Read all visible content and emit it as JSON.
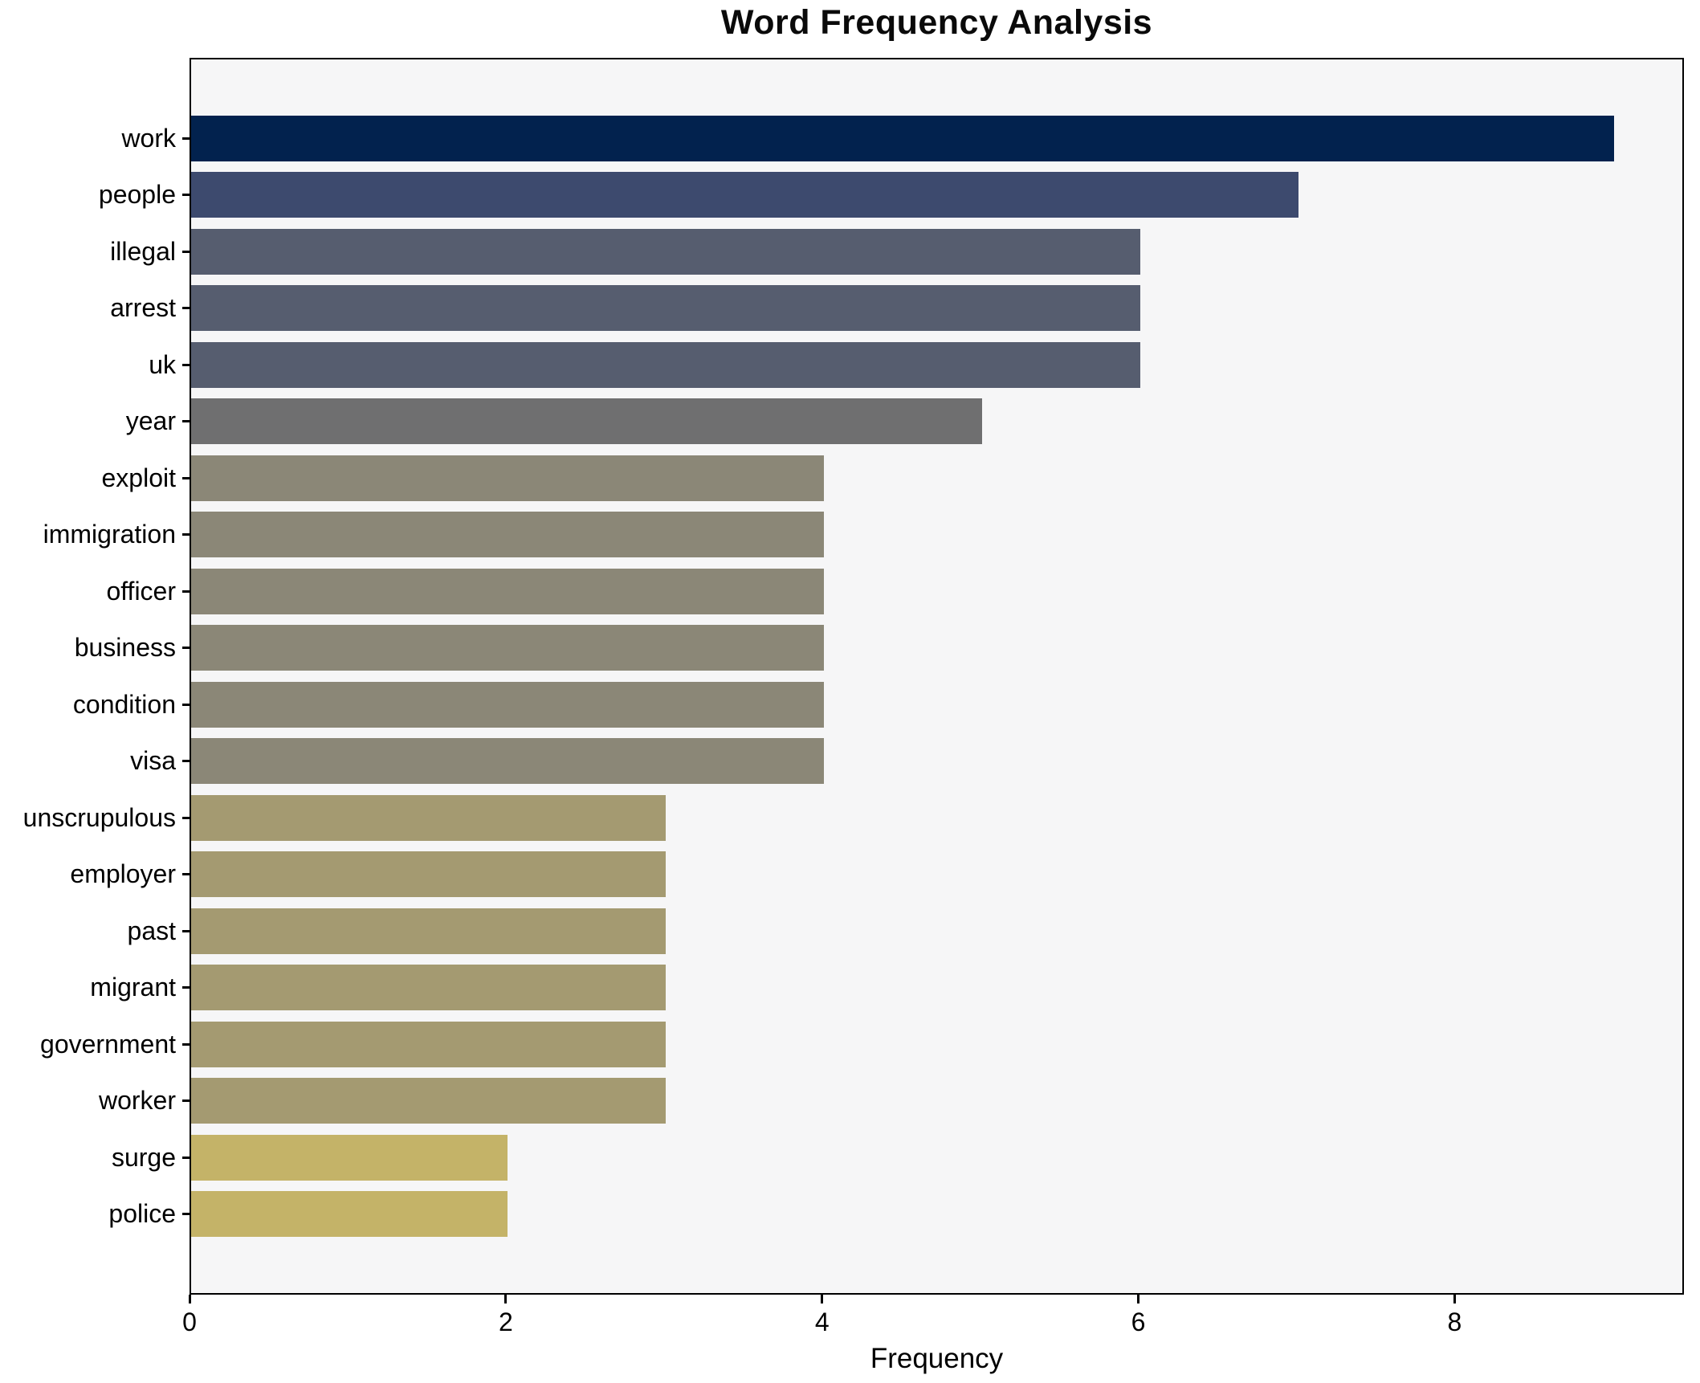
{
  "chart_data": {
    "type": "bar",
    "orientation": "horizontal",
    "title": "Word Frequency Analysis",
    "xlabel": "Frequency",
    "ylabel": "",
    "categories": [
      "work",
      "people",
      "illegal",
      "arrest",
      "uk",
      "year",
      "exploit",
      "immigration",
      "officer",
      "business",
      "condition",
      "visa",
      "unscrupulous",
      "employer",
      "past",
      "migrant",
      "government",
      "worker",
      "surge",
      "police"
    ],
    "values": [
      9,
      7,
      6,
      6,
      6,
      5,
      4,
      4,
      4,
      4,
      4,
      4,
      3,
      3,
      3,
      3,
      3,
      3,
      2,
      2
    ],
    "bar_colors": [
      "#02224e",
      "#3d4a6e",
      "#565d6f",
      "#565d6f",
      "#565d6f",
      "#6f6f70",
      "#8b8777",
      "#8b8777",
      "#8b8777",
      "#8b8777",
      "#8b8777",
      "#8b8777",
      "#a49a71",
      "#a49a71",
      "#a49a71",
      "#a49a71",
      "#a49a71",
      "#a49a71",
      "#c4b368",
      "#c4b368"
    ],
    "xlim": [
      0,
      9.45
    ],
    "x_ticks": [
      0,
      2,
      4,
      6,
      8
    ],
    "grid": false,
    "legend": null,
    "plot_bg_color": "#f6f6f7",
    "figure_bg_color": "#ffffff",
    "spine_color": "#000000"
  }
}
